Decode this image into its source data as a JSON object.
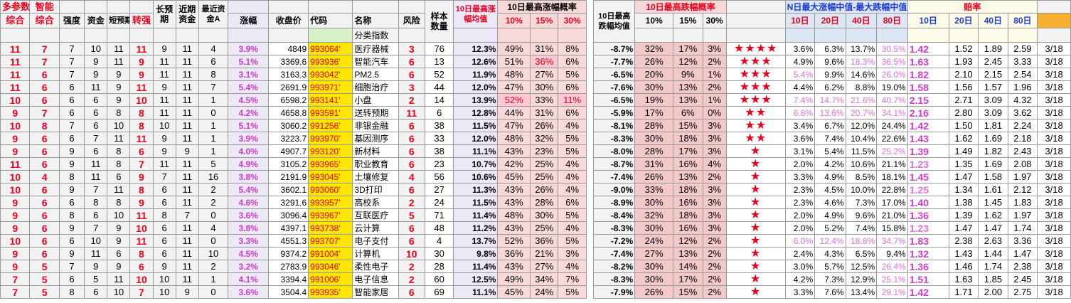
{
  "header": {
    "row1": {
      "duocanshu": "多参数",
      "zhineng": "智能",
      "changyuqi": "长预期",
      "jinqi_zijin": "近期资金",
      "zuijin_zijinA": "最近资金A",
      "yangben_shuliang": "样本数量",
      "max_rise_avg_10d": "10日最高涨幅均值",
      "max_rise_prob_10d": "10日最高涨幅概率",
      "max_fall_avg_10d": "10日最高跌幅均值",
      "max_fall_prob_10d": "10日最高跌幅概率",
      "nday_median": "N日最大涨幅中值-最大跌幅中值",
      "peilv": "赔率"
    },
    "row2": {
      "zonghe1": "综合",
      "zonghe2": "综合",
      "qiangdu": "强度",
      "zijin": "资金",
      "duanyuqi": "短预期",
      "zhuanqiang": "转强",
      "zhangfu": "涨幅",
      "shoupanjia": "收盘价",
      "daima": "代码",
      "mingcheng": "名称",
      "fengxian": "风险",
      "rise_10": "10%",
      "rise_15": "15%",
      "rise_30": "30%",
      "fall_10": "10%",
      "fall_15": "15%",
      "fall_30": "30%",
      "m10": "10日",
      "m20": "20日",
      "m40": "40日",
      "m80": "80日",
      "p10": "10日",
      "p20": "20日",
      "p40": "40日",
      "p80": "80日"
    },
    "row3": {
      "fenlei_zhishu": "分类指数"
    }
  },
  "rows": [
    {
      "a": "11",
      "b": "7",
      "qd": "7",
      "zj": "10",
      "dyq": "11",
      "zq": "11",
      "cyq": "9",
      "jqzj": "11",
      "zjA": "4",
      "zf": "3.9%",
      "price": "4849",
      "code": "993064'",
      "name": "医疗器械",
      "risk": "3",
      "n": "76",
      "ravg": "12.3%",
      "r10": "49%",
      "r15": "31%",
      "r30": "8%",
      "favg": "-8.7%",
      "f10": "32%",
      "f15": "17%",
      "f30": "3%",
      "stars": "★★★★",
      "m10": "3.6%",
      "m20": "6.3%",
      "m40": "13.7%",
      "m80": "30.5%",
      "p10": "1.42",
      "p20": "1.52",
      "p40": "1.89",
      "p80": "2.59",
      "date": "3/18"
    },
    {
      "a": "11",
      "b": "7",
      "qd": "7",
      "zj": "9",
      "dyq": "11",
      "zq": "9",
      "cyq": "11",
      "jqzj": "11",
      "zjA": "6",
      "zf": "5.1%",
      "price": "3369.6",
      "code": "993936'",
      "name": "智能汽车",
      "risk": "6",
      "n": "13",
      "ravg": "12.6%",
      "r10": "51%",
      "r15": "36%",
      "r30": "6%",
      "favg": "-7.7%",
      "f10": "26%",
      "f15": "12%",
      "f30": "2%",
      "stars": "★★★",
      "m10": "4.9%",
      "m20": "9.6%",
      "m40": "18.3%",
      "m80": "36.5%",
      "p10": "1.63",
      "p20": "1.93",
      "p40": "2.45",
      "p80": "3.33",
      "date": "3/18"
    },
    {
      "a": "11",
      "b": "6",
      "qd": "7",
      "zj": "9",
      "dyq": "9",
      "zq": "9",
      "cyq": "11",
      "jqzj": "11",
      "zjA": "8",
      "zf": "3.1%",
      "price": "3163.3",
      "code": "993042'",
      "name": "PM2.5",
      "risk": "6",
      "n": "52",
      "ravg": "11.9%",
      "r10": "48%",
      "r15": "27%",
      "r30": "5%",
      "favg": "-6.5%",
      "f10": "20%",
      "f15": "9%",
      "f30": "1%",
      "stars": "★★★",
      "m10": "5.4%",
      "m20": "9.9%",
      "m40": "14.6%",
      "m80": "26.0%",
      "p10": "1.82",
      "p20": "2.10",
      "p40": "2.15",
      "p80": "2.54",
      "date": "3/18"
    },
    {
      "a": "11",
      "b": "6",
      "qd": "6",
      "zj": "11",
      "dyq": "9",
      "zq": "11",
      "cyq": "9",
      "jqzj": "11",
      "zjA": "7",
      "zf": "5.4%",
      "price": "2691.9",
      "code": "993971'",
      "name": "细胞治疗",
      "risk": "3",
      "n": "44",
      "ravg": "12.0%",
      "r10": "47%",
      "r15": "30%",
      "r30": "6%",
      "favg": "-7.6%",
      "f10": "30%",
      "f15": "13%",
      "f30": "2%",
      "stars": "★★★",
      "m10": "4.4%",
      "m20": "6.2%",
      "m40": "8.8%",
      "m80": "19.0%",
      "p10": "1.58",
      "p20": "1.56",
      "p40": "1.57",
      "p80": "1.96",
      "date": "3/18"
    },
    {
      "a": "10",
      "b": "6",
      "qd": "6",
      "zj": "6",
      "dyq": "9",
      "zq": "10",
      "cyq": "11",
      "jqzj": "11",
      "zjA": "1",
      "zf": "4.5%",
      "price": "6598.2",
      "code": "993141'",
      "name": "小盘",
      "risk": "2",
      "n": "14",
      "ravg": "13.9%",
      "r10": "52%",
      "r15": "33%",
      "r30": "11%",
      "favg": "-6.5%",
      "f10": "19%",
      "f15": "13%",
      "f30": "1%",
      "stars": "★★★",
      "m10": "7.4%",
      "m20": "14.7%",
      "m40": "21.6%",
      "m80": "40.7%",
      "p10": "2.15",
      "p20": "2.71",
      "p40": "3.09",
      "p80": "4.32",
      "date": "3/18"
    },
    {
      "a": "9",
      "b": "7",
      "qd": "6",
      "zj": "6",
      "dyq": "8",
      "zq": "8",
      "cyq": "11",
      "jqzj": "11",
      "zjA": "0",
      "zf": "4.2%",
      "price": "4658.8",
      "code": "993591'",
      "name": "送转预期",
      "risk": "11",
      "n": "6",
      "ravg": "12.8%",
      "r10": "44%",
      "r15": "31%",
      "r30": "6%",
      "favg": "-5.9%",
      "f10": "17%",
      "f15": "6%",
      "f30": "0%",
      "stars": "★★",
      "m10": "6.8%",
      "m20": "13.6%",
      "m40": "20.7%",
      "m80": "34.1%",
      "p10": "2.16",
      "p20": "2.80",
      "p40": "3.09",
      "p80": "3.62",
      "date": "3/18"
    },
    {
      "a": "10",
      "b": "8",
      "qd": "7",
      "zj": "6",
      "dyq": "10",
      "zq": "8",
      "cyq": "10",
      "jqzj": "11",
      "zjA": "1",
      "zf": "5.1%",
      "price": "3060.2",
      "code": "991256'",
      "name": "非银金融",
      "risk": "6",
      "n": "38",
      "ravg": "11.5%",
      "r10": "47%",
      "r15": "26%",
      "r30": "4%",
      "favg": "-8.1%",
      "f10": "28%",
      "f15": "15%",
      "f30": "3%",
      "stars": "★★",
      "m10": "3.4%",
      "m20": "6.7%",
      "m40": "12.0%",
      "m80": "24.4%",
      "p10": "1.42",
      "p20": "1.50",
      "p40": "1.81",
      "p80": "2.24",
      "date": "3/18"
    },
    {
      "a": "9",
      "b": "6",
      "qd": "6",
      "zj": "7",
      "dyq": "11",
      "zq": "11",
      "cyq": "9",
      "jqzj": "11",
      "zjA": "1",
      "zf": "3.9%",
      "price": "3223.7",
      "code": "993970'",
      "name": "基因测序",
      "risk": "6",
      "n": "33",
      "ravg": "12.0%",
      "r10": "48%",
      "r15": "32%",
      "r30": "5%",
      "favg": "-8.3%",
      "f10": "30%",
      "f15": "18%",
      "f30": "3%",
      "stars": "★★",
      "m10": "3.6%",
      "m20": "7.4%",
      "m40": "10.4%",
      "m80": "22.6%",
      "p10": "1.43",
      "p20": "1.62",
      "p40": "1.69",
      "p80": "2.18",
      "date": "3/18"
    },
    {
      "a": "9",
      "b": "6",
      "qd": "9",
      "zj": "6",
      "dyq": "8",
      "zq": "6",
      "cyq": "9",
      "jqzj": "9",
      "zjA": "1",
      "zf": "4.0%",
      "price": "4907.7",
      "code": "993120'",
      "name": "新材料",
      "risk": "6",
      "n": "38",
      "ravg": "11.1%",
      "r10": "43%",
      "r15": "23%",
      "r30": "5%",
      "favg": "-8.0%",
      "f10": "28%",
      "f15": "17%",
      "f30": "3%",
      "stars": "★",
      "m10": "3.1%",
      "m20": "5.4%",
      "m40": "11.5%",
      "m80": "25.2%",
      "p10": "1.39",
      "p20": "1.49",
      "p40": "1.82",
      "p80": "2.43",
      "date": "3/18"
    },
    {
      "a": "11",
      "b": "6",
      "qd": "9",
      "zj": "11",
      "dyq": "8",
      "zq": "7",
      "cyq": "11",
      "jqzj": "11",
      "zjA": "5",
      "zf": "4.9%",
      "price": "3105.2",
      "code": "993965'",
      "name": "职业教育",
      "risk": "6",
      "n": "23",
      "ravg": "10.7%",
      "r10": "42%",
      "r15": "25%",
      "r30": "4%",
      "favg": "-8.7%",
      "f10": "31%",
      "f15": "16%",
      "f30": "4%",
      "stars": "★",
      "m10": "2.0%",
      "m20": "4.2%",
      "m40": "10.6%",
      "m80": "21.1%",
      "p10": "1.23",
      "p20": "1.35",
      "p40": "1.69",
      "p80": "2.08",
      "date": "3/18"
    },
    {
      "a": "10",
      "b": "4",
      "qd": "8",
      "zj": "11",
      "dyq": "6",
      "zq": "9",
      "cyq": "7",
      "jqzj": "11",
      "zjA": "16",
      "zf": "3.8%",
      "price": "2191.9",
      "code": "993045'",
      "name": "土壤修复",
      "risk": "4",
      "n": "56",
      "ravg": "10.6%",
      "r10": "45%",
      "r15": "25%",
      "r30": "4%",
      "favg": "-7.4%",
      "f10": "26%",
      "f15": "13%",
      "f30": "2%",
      "stars": "★",
      "m10": "3.3%",
      "m20": "4.9%",
      "m40": "8.5%",
      "m80": "18.1%",
      "p10": "1.45",
      "p20": "1.47",
      "p40": "1.58",
      "p80": "1.97",
      "date": "3/18"
    },
    {
      "a": "10",
      "b": "6",
      "qd": "9",
      "zj": "7",
      "dyq": "11",
      "zq": "8",
      "cyq": "6",
      "jqzj": "11",
      "zjA": "2",
      "zf": "5.4%",
      "price": "3602.1",
      "code": "993060'",
      "name": "3D打印",
      "risk": "6",
      "n": "27",
      "ravg": "11.3%",
      "r10": "43%",
      "r15": "26%",
      "r30": "4%",
      "favg": "-9.0%",
      "f10": "33%",
      "f15": "18%",
      "f30": "3%",
      "stars": "★",
      "m10": "2.3%",
      "m20": "4.5%",
      "m40": "10.0%",
      "m80": "22.8%",
      "p10": "1.25",
      "p20": "1.34",
      "p40": "1.61",
      "p80": "2.12",
      "date": "3/18"
    },
    {
      "a": "9",
      "b": "6",
      "qd": "6",
      "zj": "8",
      "dyq": "8",
      "zq": "9",
      "cyq": "6",
      "jqzj": "11",
      "zjA": "2",
      "zf": "4.6%",
      "price": "3291.6",
      "code": "993957'",
      "name": "高校系",
      "risk": "2",
      "n": "24",
      "ravg": "11.5%",
      "r10": "43%",
      "r15": "28%",
      "r30": "6%",
      "favg": "-8.9%",
      "f10": "30%",
      "f15": "16%",
      "f30": "3%",
      "stars": "★",
      "m10": "2.3%",
      "m20": "4.6%",
      "m40": "7.3%",
      "m80": "17.0%",
      "p10": "1.40",
      "p20": "1.38",
      "p40": "1.45",
      "p80": "1.83",
      "date": "3/18"
    },
    {
      "a": "9",
      "b": "6",
      "qd": "8",
      "zj": "6",
      "dyq": "10",
      "zq": "11",
      "cyq": "8",
      "jqzj": "7",
      "zjA": "0",
      "zf": "3.6%",
      "price": "3096.4",
      "code": "993967'",
      "name": "互联医疗",
      "risk": "5",
      "n": "71",
      "ravg": "11.4%",
      "r10": "48%",
      "r15": "30%",
      "r30": "5%",
      "favg": "-8.4%",
      "f10": "32%",
      "f15": "18%",
      "f30": "3%",
      "stars": "★",
      "m10": "2.0%",
      "m20": "4.9%",
      "m40": "9.6%",
      "m80": "21.0%",
      "p10": "1.36",
      "p20": "1.39",
      "p40": "1.62",
      "p80": "1.97",
      "date": "3/18"
    },
    {
      "a": "9",
      "b": "6",
      "qd": "9",
      "zj": "7",
      "dyq": "9",
      "zq": "10",
      "cyq": "6",
      "jqzj": "11",
      "zjA": "4",
      "zf": "3.8%",
      "price": "4397.1",
      "code": "993738'",
      "name": "云计算",
      "risk": "6",
      "n": "48",
      "ravg": "11.2%",
      "r10": "43%",
      "r15": "25%",
      "r30": "4%",
      "favg": "-8.3%",
      "f10": "30%",
      "f15": "16%",
      "f30": "3%",
      "stars": "★",
      "m10": "2.0%",
      "m20": "5.2%",
      "m40": "7.4%",
      "m80": "15.8%",
      "p10": "1.23",
      "p20": "1.47",
      "p40": "1.47",
      "p80": "1.74",
      "date": "3/18"
    },
    {
      "a": "10",
      "b": "6",
      "qd": "6",
      "zj": "10",
      "dyq": "9",
      "zq": "11",
      "cyq": "6",
      "jqzj": "11",
      "zjA": "0",
      "zf": "3.3%",
      "price": "4551.3",
      "code": "993707'",
      "name": "电子支付",
      "risk": "6",
      "n": "4",
      "ravg": "13.7%",
      "r10": "52%",
      "r15": "36%",
      "r30": "5%",
      "favg": "-7.2%",
      "f10": "24%",
      "f15": "12%",
      "f30": "2%",
      "stars": "★",
      "m10": "6.0%",
      "m20": "12.4%",
      "m40": "18.8%",
      "m80": "34.7%",
      "p10": "1.83",
      "p20": "2.38",
      "p40": "2.63",
      "p80": "3.36",
      "date": "3/18"
    },
    {
      "a": "9",
      "b": "6",
      "qd": "9",
      "zj": "11",
      "dyq": "6",
      "zq": "8",
      "cyq": "6",
      "jqzj": "11",
      "zjA": "10",
      "zf": "4.5%",
      "price": "9374.2",
      "code": "991004'",
      "name": "计算机",
      "risk": "10",
      "n": "30",
      "ravg": "9.8%",
      "r10": "36%",
      "r15": "21%",
      "r30": "3%",
      "favg": "-7.4%",
      "f10": "27%",
      "f15": "13%",
      "f30": "2%",
      "stars": "★",
      "m10": "2.4%",
      "m20": "4.3%",
      "m40": "6.5%",
      "m80": "9.4%",
      "p10": "1.32",
      "p20": "1.43",
      "p40": "1.44",
      "p80": "1.47",
      "date": "3/18"
    },
    {
      "a": "9",
      "b": "5",
      "qd": "7",
      "zj": "9",
      "dyq": "9",
      "zq": "6",
      "cyq": "9",
      "jqzj": "11",
      "zjA": "2",
      "zf": "3.2%",
      "price": "2783.9",
      "code": "993046'",
      "name": "柔性电子",
      "risk": "2",
      "n": "28",
      "ravg": "11.4%",
      "r10": "43%",
      "r15": "27%",
      "r30": "4%",
      "favg": "-8.2%",
      "f10": "30%",
      "f15": "14%",
      "f30": "2%",
      "stars": "★",
      "m10": "3.0%",
      "m20": "5.7%",
      "m40": "12.5%",
      "m80": "26.4%",
      "p10": "1.36",
      "p20": "1.46",
      "p40": "1.74",
      "p80": "2.38",
      "date": "3/18"
    },
    {
      "a": "7",
      "b": "5",
      "qd": "6",
      "zj": "5",
      "dyq": "11",
      "zq": "10",
      "cyq": "10",
      "jqzj": "11",
      "zjA": "1",
      "zf": "4.1%",
      "price": "3394.4",
      "code": "991006'",
      "name": "电子信息",
      "risk": "2",
      "n": "60",
      "ravg": "12.5%",
      "r10": "49%",
      "r15": "34%",
      "r30": "7%",
      "favg": "-8.3%",
      "f10": "30%",
      "f15": "17%",
      "f30": "2%",
      "stars": "★",
      "m10": "4.2%",
      "m20": "7.3%",
      "m40": "12.9%",
      "m80": "25.1%",
      "p10": "1.51",
      "p20": "1.63",
      "p40": "1.85",
      "p80": "2.45",
      "date": "3/18"
    },
    {
      "a": "7",
      "b": "5",
      "qd": "8",
      "zj": "6",
      "dyq": "10",
      "zq": "7",
      "cyq": "10",
      "jqzj": "9",
      "zjA": "0",
      "zf": "3.6%",
      "price": "3504.4",
      "code": "993935'",
      "name": "智能家居",
      "risk": "6",
      "n": "69",
      "ravg": "11.1%",
      "r10": "45%",
      "r15": "24%",
      "r30": "5%",
      "favg": "-7.9%",
      "f10": "26%",
      "f15": "15%",
      "f30": "2%",
      "stars": "★",
      "m10": "3.3%",
      "m20": "7.6%",
      "m40": "13.4%",
      "m80": "29.1%",
      "p10": "1.42",
      "p20": "1.71",
      "p40": "2.00",
      "p80": "2.75",
      "date": "3/18"
    }
  ],
  "highlights": {
    "pink_cells": [
      "1.r15",
      "4.r10",
      "4.r30"
    ]
  }
}
